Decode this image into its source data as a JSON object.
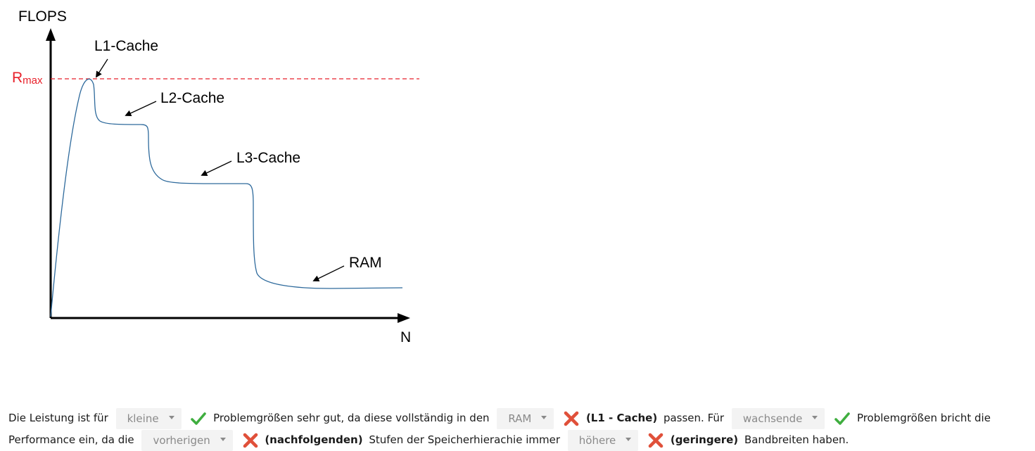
{
  "figure": {
    "y_label": "FLOPS",
    "x_label": "N",
    "rmax_main": "R",
    "rmax_sub": "max",
    "annotations": {
      "l1": "L1-Cache",
      "l2": "L2-Cache",
      "l3": "L3-Cache",
      "ram": "RAM"
    },
    "colors": {
      "curve": "#2e6a9c",
      "rmax": "#e8202a",
      "axis": "#000000"
    }
  },
  "quiz": {
    "t1": "Die Leistung ist für",
    "d1": "kleine",
    "t2": "Problemgrößen sehr gut, da diese vollständig in den",
    "d2": "RAM",
    "c2": "(L1 - Cache)",
    "t3": "passen. Für",
    "d3": "wachsende",
    "t4": "Problemgrößen bricht die Performance ein, da die",
    "d4": "vorherigen",
    "c4": "(nachfolgenden)",
    "t5": "Stufen der Speicherhierachie immer",
    "d5": "höhere",
    "c5": "(geringere)",
    "t6": "Bandbreiten haben.",
    "colors": {
      "check": "#3fae3f",
      "cross": "#e0503a",
      "dropdown_bg": "#f3f3f3"
    }
  }
}
